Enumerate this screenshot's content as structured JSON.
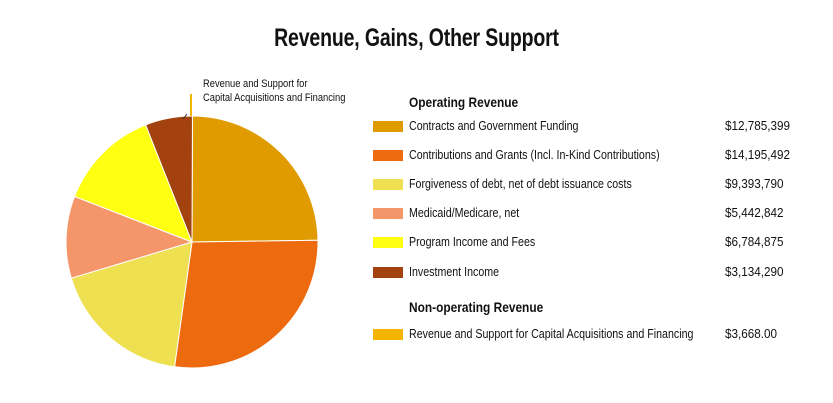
{
  "chart_data": {
    "type": "pie",
    "title": "Revenue, Gains, Other Support",
    "callout_label": "Revenue and Support for Capital Acquisitions and Financing",
    "callout_lines": [
      "Revenue and Support for",
      "Capital Acquisitions and Financing"
    ],
    "sections": [
      {
        "heading": "Operating Revenue",
        "items": [
          {
            "label": "Contracts and Government Funding",
            "value": 12785399,
            "display": "$12,785,399",
            "color": "#E09B00"
          },
          {
            "label": "Contributions and Grants (Incl. In-Kind Contributions)",
            "value": 14195492,
            "display": "$14,195,492",
            "color": "#EE6A0E"
          },
          {
            "label": "Forgiveness of debt, net of debt issuance costs",
            "value": 9393790,
            "display": "$9,393,790",
            "color": "#EEE050"
          },
          {
            "label": "Medicaid/Medicare, net",
            "value": 5442842,
            "display": "$5,442,842",
            "color": "#F5956A"
          },
          {
            "label": "Program Income and Fees",
            "value": 6784875,
            "display": "$6,784,875",
            "color": "#FFFF11"
          },
          {
            "label": "Investment Income",
            "value": 3134290,
            "display": "$3,134,290",
            "color": "#A3420F"
          }
        ]
      },
      {
        "heading": "Non-operating Revenue",
        "items": [
          {
            "label": "Revenue and Support for Capital Acquisitions and Financing",
            "value": 3668.0,
            "display": "$3,668.00",
            "color": "#F5B400"
          }
        ]
      }
    ],
    "slice_order": [
      "Revenue and Support for Capital Acquisitions and Financing",
      "Contracts and Government Funding",
      "Contributions and Grants (Incl. In-Kind Contributions)",
      "Forgiveness of debt, net of debt issuance costs",
      "Medicaid/Medicare, net",
      "Program Income and Fees",
      "Investment Income"
    ],
    "start": "top",
    "direction": "clockwise"
  }
}
